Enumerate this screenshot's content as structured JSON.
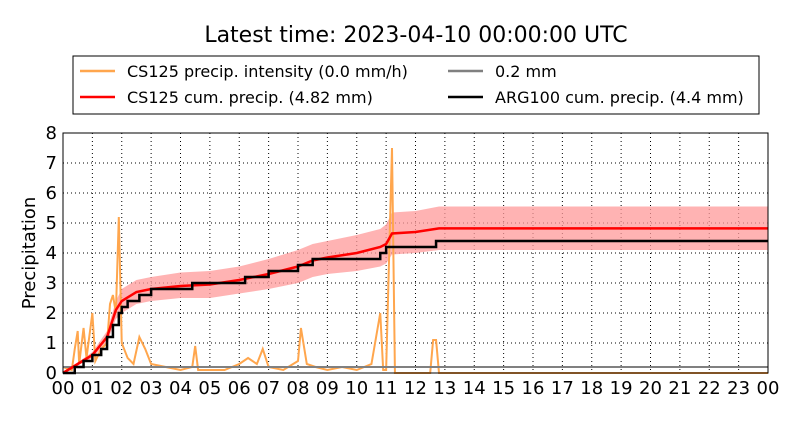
{
  "chart_data": {
    "type": "line",
    "title": "Latest time: 2023-04-10 00:00:00 UTC",
    "y_label": "Precipitation",
    "xlim": [
      0,
      24
    ],
    "ylim": [
      0,
      8
    ],
    "xticks": [
      {
        "value": 0,
        "label": "00"
      },
      {
        "value": 1,
        "label": "01"
      },
      {
        "value": 2,
        "label": "02"
      },
      {
        "value": 3,
        "label": "03"
      },
      {
        "value": 4,
        "label": "04"
      },
      {
        "value": 5,
        "label": "05"
      },
      {
        "value": 6,
        "label": "06"
      },
      {
        "value": 7,
        "label": "07"
      },
      {
        "value": 8,
        "label": "08"
      },
      {
        "value": 9,
        "label": "09"
      },
      {
        "value": 10,
        "label": "10"
      },
      {
        "value": 11,
        "label": "11"
      },
      {
        "value": 12,
        "label": "12"
      },
      {
        "value": 13,
        "label": "13"
      },
      {
        "value": 14,
        "label": "14"
      },
      {
        "value": 15,
        "label": "15"
      },
      {
        "value": 16,
        "label": "16"
      },
      {
        "value": 17,
        "label": "17"
      },
      {
        "value": 18,
        "label": "18"
      },
      {
        "value": 19,
        "label": "19"
      },
      {
        "value": 20,
        "label": "20"
      },
      {
        "value": 21,
        "label": "21"
      },
      {
        "value": 22,
        "label": "22"
      },
      {
        "value": 23,
        "label": "23"
      },
      {
        "value": 24,
        "label": "00"
      }
    ],
    "yticks": [
      0,
      1,
      2,
      3,
      4,
      5,
      6,
      7,
      8
    ],
    "grid": true,
    "legend": "top",
    "series": [
      {
        "name": "CS125 precip. intensity (0.0 mm/h)",
        "color": "#ffa64d",
        "step": "none",
        "x": [
          0,
          0.3,
          0.4,
          0.5,
          0.55,
          0.7,
          0.8,
          1.0,
          1.1,
          1.3,
          1.5,
          1.6,
          1.7,
          1.8,
          1.9,
          2.0,
          2.2,
          2.4,
          2.6,
          2.8,
          3.0,
          3.5,
          4.0,
          4.4,
          4.5,
          4.6,
          5.5,
          6.0,
          6.3,
          6.6,
          6.8,
          7.0,
          7.5,
          8.0,
          8.1,
          8.3,
          8.6,
          9.0,
          9.5,
          10.0,
          10.5,
          10.8,
          10.9,
          11.0,
          11.2,
          11.3,
          12.5,
          12.6,
          12.7,
          12.8,
          24
        ],
        "values": [
          0.2,
          0.1,
          0.8,
          1.4,
          0.3,
          1.5,
          0.5,
          2.0,
          0.4,
          0.8,
          1.0,
          2.3,
          2.6,
          2.0,
          5.2,
          1.0,
          0.5,
          0.3,
          1.2,
          0.8,
          0.3,
          0.2,
          0.1,
          0.2,
          0.9,
          0.1,
          0.1,
          0.3,
          0.5,
          0.3,
          0.8,
          0.2,
          0.1,
          0.4,
          1.5,
          0.3,
          0.2,
          0.1,
          0.2,
          0.1,
          0.3,
          2.0,
          0.1,
          0.1,
          7.5,
          0,
          0,
          1.1,
          1.1,
          0,
          0
        ]
      },
      {
        "name": "0.2 mm",
        "color": "#808080",
        "step": "none",
        "x": [
          0,
          24
        ],
        "values": [
          0.2,
          0.2
        ]
      },
      {
        "name": "CS125 cum. precip. (4.82 mm)",
        "color": "#ff0000",
        "step": "none",
        "band_color": "#ff9999",
        "x": [
          0,
          0.5,
          1.0,
          1.5,
          1.8,
          2.0,
          2.5,
          3.0,
          4.0,
          5.0,
          6.0,
          7.0,
          8.0,
          8.5,
          9.0,
          10.0,
          10.8,
          11.0,
          11.2,
          12.0,
          12.8,
          24
        ],
        "values": [
          0,
          0.3,
          0.6,
          1.2,
          2.1,
          2.4,
          2.7,
          2.8,
          2.9,
          2.95,
          3.1,
          3.3,
          3.55,
          3.75,
          3.85,
          4.0,
          4.2,
          4.3,
          4.65,
          4.7,
          4.82,
          4.82
        ],
        "lower": [
          0,
          0.25,
          0.5,
          1.0,
          1.8,
          2.0,
          2.3,
          2.4,
          2.5,
          2.5,
          2.65,
          2.8,
          3.0,
          3.2,
          3.3,
          3.4,
          3.55,
          3.65,
          3.95,
          4.0,
          4.1,
          4.1
        ],
        "upper": [
          0,
          0.35,
          0.7,
          1.4,
          2.4,
          2.8,
          3.1,
          3.2,
          3.35,
          3.4,
          3.55,
          3.8,
          4.1,
          4.3,
          4.4,
          4.6,
          4.8,
          4.95,
          5.35,
          5.4,
          5.55,
          5.55
        ]
      },
      {
        "name": "ARG100 cum. precip. (4.4 mm)",
        "color": "#000000",
        "step": "post",
        "x": [
          0,
          0.4,
          0.7,
          1.0,
          1.3,
          1.5,
          1.7,
          1.9,
          2.0,
          2.2,
          2.6,
          3.0,
          4.4,
          6.2,
          7.0,
          8.0,
          8.5,
          10.8,
          11.0,
          12.7,
          24
        ],
        "values": [
          0,
          0.2,
          0.4,
          0.6,
          0.8,
          1.2,
          1.6,
          2.0,
          2.2,
          2.4,
          2.6,
          2.8,
          3.0,
          3.2,
          3.4,
          3.6,
          3.8,
          4.0,
          4.2,
          4.4,
          4.4
        ]
      }
    ]
  }
}
